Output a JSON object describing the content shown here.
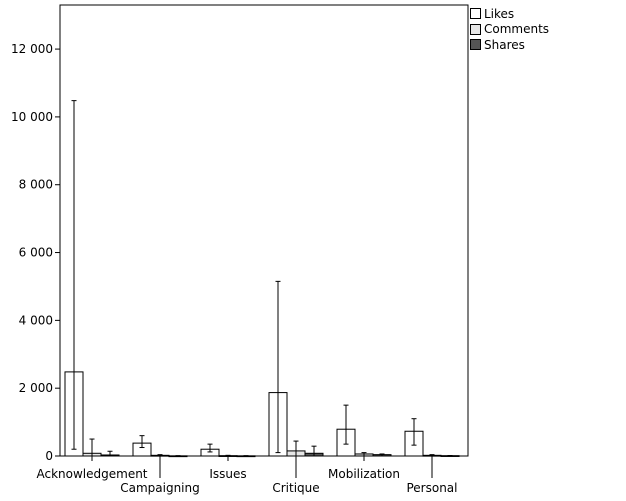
{
  "chart_data": {
    "type": "bar",
    "categories": [
      "Acknowledgement",
      "Campaigning",
      "Issues",
      "Critique",
      "Mobilization",
      "Personal"
    ],
    "series": [
      {
        "name": "Likes",
        "color": "#ffffff",
        "values": [
          2480,
          380,
          200,
          1870,
          790,
          730
        ],
        "error_upper": [
          10480,
          600,
          350,
          5150,
          1500,
          1100
        ],
        "error_lower": [
          200,
          250,
          120,
          100,
          350,
          320
        ]
      },
      {
        "name": "Comments",
        "color": "#e6e6e6",
        "values": [
          80,
          20,
          10,
          150,
          60,
          20
        ],
        "error_upper": [
          500,
          40,
          20,
          440,
          100,
          40
        ],
        "error_lower": [
          0,
          0,
          0,
          0,
          0,
          0
        ]
      },
      {
        "name": "Shares",
        "color": "#555555",
        "values": [
          30,
          5,
          5,
          80,
          40,
          10
        ],
        "error_upper": [
          140,
          10,
          10,
          290,
          60,
          15
        ],
        "error_lower": [
          0,
          0,
          0,
          0,
          0,
          0
        ]
      }
    ],
    "yticks": [
      0,
      2000,
      4000,
      6000,
      8000,
      10000,
      12000
    ],
    "ytick_labels": [
      "0",
      "2 000",
      "4 000",
      "6 000",
      "8 000",
      "10 000",
      "12 000"
    ],
    "ylim": [
      0,
      13300
    ],
    "legend_position": "top-right",
    "grid": false
  }
}
